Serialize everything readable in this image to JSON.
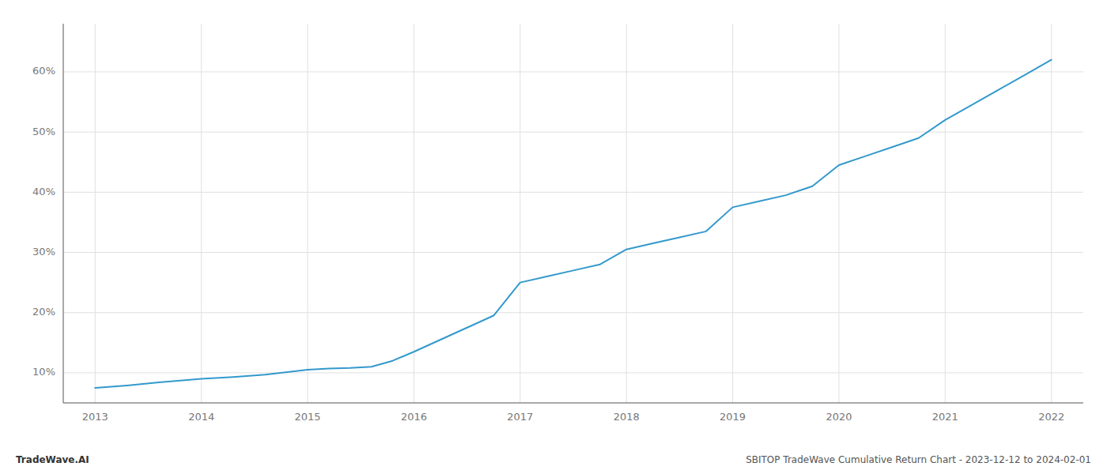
{
  "chart_data": {
    "type": "line",
    "x": [
      2013,
      2013.3,
      2013.6,
      2014,
      2014.3,
      2014.6,
      2015,
      2015.2,
      2015.4,
      2015.6,
      2015.8,
      2016,
      2016.25,
      2016.5,
      2016.75,
      2017,
      2017.25,
      2017.5,
      2017.75,
      2018,
      2018.25,
      2018.5,
      2018.75,
      2019,
      2019.25,
      2019.5,
      2019.75,
      2020,
      2020.25,
      2020.5,
      2020.75,
      2021,
      2021.25,
      2021.5,
      2021.75,
      2022
    ],
    "values": [
      7.5,
      7.9,
      8.4,
      9.0,
      9.3,
      9.7,
      10.5,
      10.7,
      10.8,
      11.0,
      12.0,
      13.5,
      15.5,
      17.5,
      19.5,
      25.0,
      26.0,
      27.0,
      28.0,
      30.5,
      31.5,
      32.5,
      33.5,
      37.5,
      38.5,
      39.5,
      41.0,
      44.5,
      46.0,
      47.5,
      49.0,
      52.0,
      54.5,
      57.0,
      59.5,
      62.0
    ],
    "color": "#3399cc",
    "xlim": [
      2012.7,
      2022.3
    ],
    "ylim": [
      5,
      68
    ],
    "xticks": [
      2013,
      2014,
      2015,
      2016,
      2017,
      2018,
      2019,
      2020,
      2021,
      2022
    ],
    "yticks": [
      {
        "value": 10,
        "label": "10%"
      },
      {
        "value": 20,
        "label": "20%"
      },
      {
        "value": 30,
        "label": "30%"
      },
      {
        "value": 40,
        "label": "40%"
      },
      {
        "value": 50,
        "label": "50%"
      },
      {
        "value": 60,
        "label": "60%"
      }
    ],
    "grid": true,
    "annotations": [
      "TradeWave.AI",
      "SBITOP TradeWave Cumulative Return Chart - 2023-12-12 to 2024-02-01"
    ]
  }
}
